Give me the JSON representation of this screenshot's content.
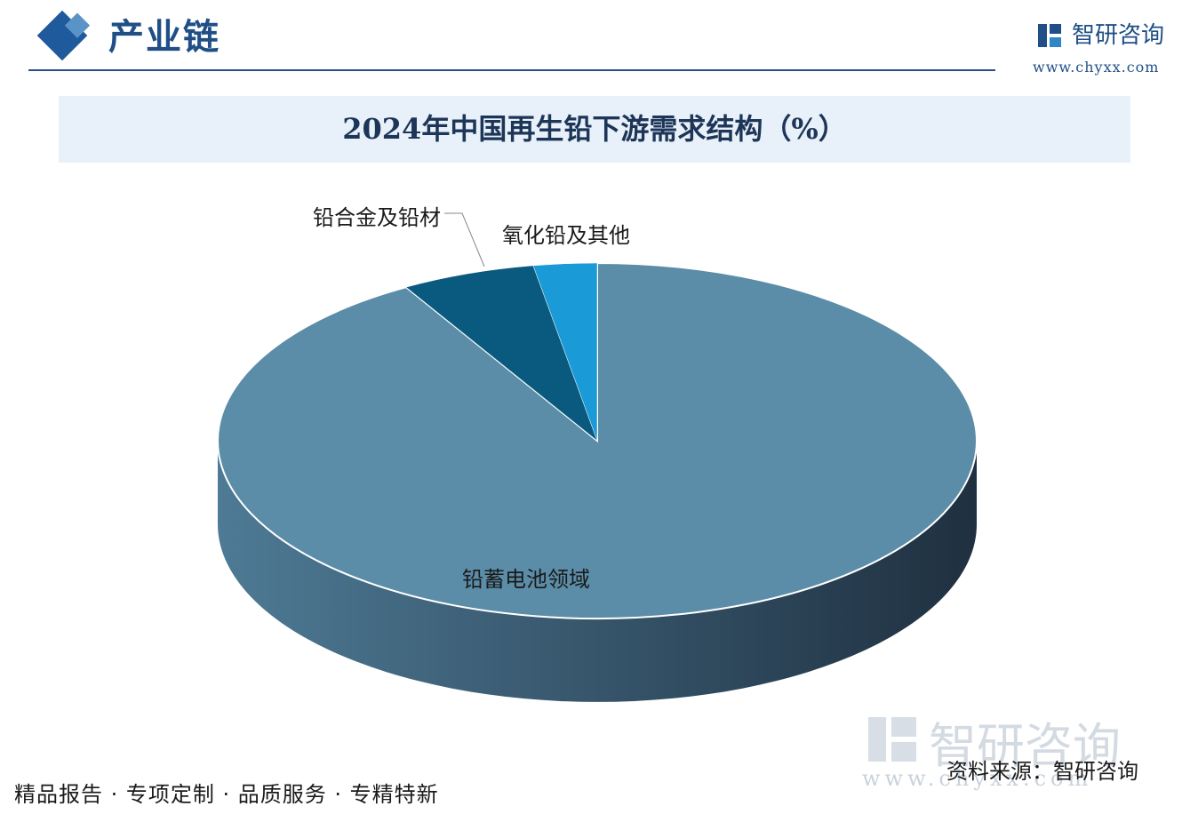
{
  "header": {
    "section_title": "产业链",
    "brand_name": "智研咨询",
    "brand_url": "www.chyxx.com"
  },
  "chart_data": {
    "type": "pie",
    "title": "2024年中国再生铅下游需求结构（%）",
    "start_angle_deg": 90,
    "slices": [
      {
        "label": "铅蓄电池领域",
        "value": 91.6,
        "color": "#5b8da8"
      },
      {
        "label": "铅合金及铅材",
        "value": 5.7,
        "color": "#0a5a80"
      },
      {
        "label": "氧化铅及其他",
        "value": 2.7,
        "color": "#1a9ad6"
      }
    ],
    "side_color_light": "#4e7a95",
    "side_color_dark": "#1f3040"
  },
  "footer": {
    "source": "资料来源：智研咨询",
    "slogan": "精品报告 · 专项定制 · 品质服务 · 专精特新",
    "watermark_name": "智研咨询",
    "watermark_url": "www.chyxx.com"
  }
}
